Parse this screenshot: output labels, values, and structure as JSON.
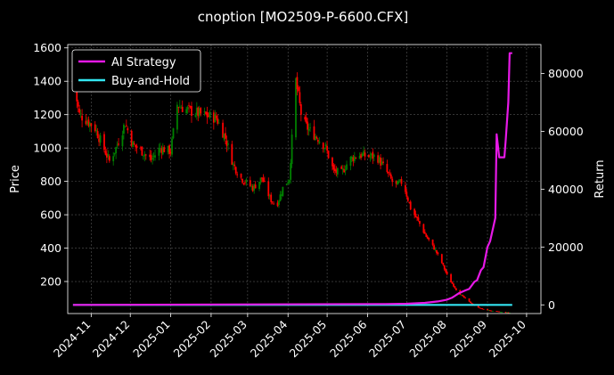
{
  "chart_data": {
    "type": "candlestick+line",
    "title": "cnoption [MO2509-P-6600.CFX]",
    "ylabel_left": "Price",
    "ylabel_right": "Return",
    "xlabel": "",
    "ylim_left": [
      8,
      1620
    ],
    "ylim_right": [
      -3000,
      90000
    ],
    "yticks_left": [
      200,
      400,
      600,
      800,
      1000,
      1200,
      1400,
      1600
    ],
    "yticks_right": [
      0,
      20000,
      40000,
      60000,
      80000
    ],
    "ytick_labels_left": [
      "200",
      "400",
      "600",
      "800",
      "1000",
      "1200",
      "1400",
      "1600"
    ],
    "ytick_labels_right": [
      "0",
      "20000",
      "40000",
      "60000",
      "80000"
    ],
    "xlim": [
      "2024-10-14",
      "2025-10-12"
    ],
    "xticks": [
      "2024-11-01",
      "2024-12-01",
      "2025-01-01",
      "2025-02-01",
      "2025-03-01",
      "2025-04-01",
      "2025-05-01",
      "2025-06-01",
      "2025-07-01",
      "2025-08-01",
      "2025-09-01",
      "2025-10-01"
    ],
    "xtick_labels": [
      "2024-11",
      "2024-12",
      "2025-01",
      "2025-02",
      "2025-03",
      "2025-04",
      "2025-05",
      "2025-06",
      "2025-07",
      "2025-08",
      "2025-09",
      "2025-10"
    ],
    "grid": true,
    "legend_position": "top-left",
    "colors": {
      "up": "#008000",
      "down": "#ff0000",
      "ai_strategy": "#e619e6",
      "buy_and_hold": "#33e6f2",
      "background": "#000000",
      "text": "#ffffff"
    },
    "price_anchors": [
      [
        "2024-10-18",
        1410
      ],
      [
        "2024-10-23",
        1200
      ],
      [
        "2024-10-28",
        1170
      ],
      [
        "2024-11-04",
        1120
      ],
      [
        "2024-11-10",
        1010
      ],
      [
        "2024-11-15",
        920
      ],
      [
        "2024-11-20",
        1000
      ],
      [
        "2024-11-27",
        1150
      ],
      [
        "2024-12-03",
        1020
      ],
      [
        "2024-12-10",
        980
      ],
      [
        "2024-12-17",
        930
      ],
      [
        "2024-12-24",
        1000
      ],
      [
        "2025-01-01",
        980
      ],
      [
        "2025-01-06",
        1260
      ],
      [
        "2025-01-13",
        1230
      ],
      [
        "2025-01-25",
        1200
      ],
      [
        "2025-02-05",
        1180
      ],
      [
        "2025-02-12",
        1060
      ],
      [
        "2025-02-18",
        900
      ],
      [
        "2025-02-24",
        820
      ],
      [
        "2025-03-05",
        760
      ],
      [
        "2025-03-12",
        820
      ],
      [
        "2025-03-18",
        700
      ],
      [
        "2025-03-23",
        650
      ],
      [
        "2025-03-28",
        760
      ],
      [
        "2025-04-02",
        820
      ],
      [
        "2025-04-07",
        1400
      ],
      [
        "2025-04-12",
        1160
      ],
      [
        "2025-04-18",
        1100
      ],
      [
        "2025-04-24",
        1060
      ],
      [
        "2025-04-30",
        1000
      ],
      [
        "2025-05-06",
        860
      ],
      [
        "2025-05-12",
        850
      ],
      [
        "2025-05-18",
        930
      ],
      [
        "2025-05-25",
        960
      ],
      [
        "2025-06-01",
        950
      ],
      [
        "2025-06-08",
        950
      ],
      [
        "2025-06-14",
        880
      ],
      [
        "2025-06-22",
        770
      ],
      [
        "2025-06-28",
        800
      ],
      [
        "2025-07-04",
        640
      ],
      [
        "2025-07-10",
        560
      ],
      [
        "2025-07-16",
        470
      ],
      [
        "2025-07-22",
        400
      ],
      [
        "2025-07-27",
        330
      ],
      [
        "2025-08-02",
        220
      ],
      [
        "2025-08-10",
        130
      ],
      [
        "2025-08-16",
        90
      ],
      [
        "2025-08-22",
        55
      ],
      [
        "2025-08-28",
        35
      ],
      [
        "2025-09-05",
        22
      ],
      [
        "2025-09-12",
        16
      ],
      [
        "2025-09-18",
        12
      ]
    ],
    "series": [
      {
        "name": "AI Strategy",
        "dates": [
          "2024-10-18",
          "2025-06-15",
          "2025-07-01",
          "2025-07-15",
          "2025-07-25",
          "2025-08-01",
          "2025-08-05",
          "2025-08-10",
          "2025-08-15",
          "2025-08-18",
          "2025-08-22",
          "2025-08-24",
          "2025-08-27",
          "2025-08-29",
          "2025-09-01",
          "2025-09-03",
          "2025-09-05",
          "2025-09-07",
          "2025-09-08",
          "2025-09-10",
          "2025-09-11",
          "2025-09-14",
          "2025-09-15",
          "2025-09-17",
          "2025-09-18",
          "2025-09-20"
        ],
        "values": [
          0,
          300,
          400,
          700,
          1200,
          1800,
          2500,
          4000,
          5000,
          5500,
          8000,
          8500,
          12000,
          13000,
          20000,
          22000,
          26000,
          30000,
          59000,
          51000,
          51000,
          51000,
          57000,
          70000,
          87000,
          87000
        ]
      },
      {
        "name": "Buy-and-Hold",
        "dates": [
          "2024-10-18",
          "2025-09-20"
        ],
        "values": [
          0,
          0
        ]
      }
    ]
  },
  "legend": {
    "items": [
      "AI Strategy",
      "Buy-and-Hold"
    ]
  }
}
